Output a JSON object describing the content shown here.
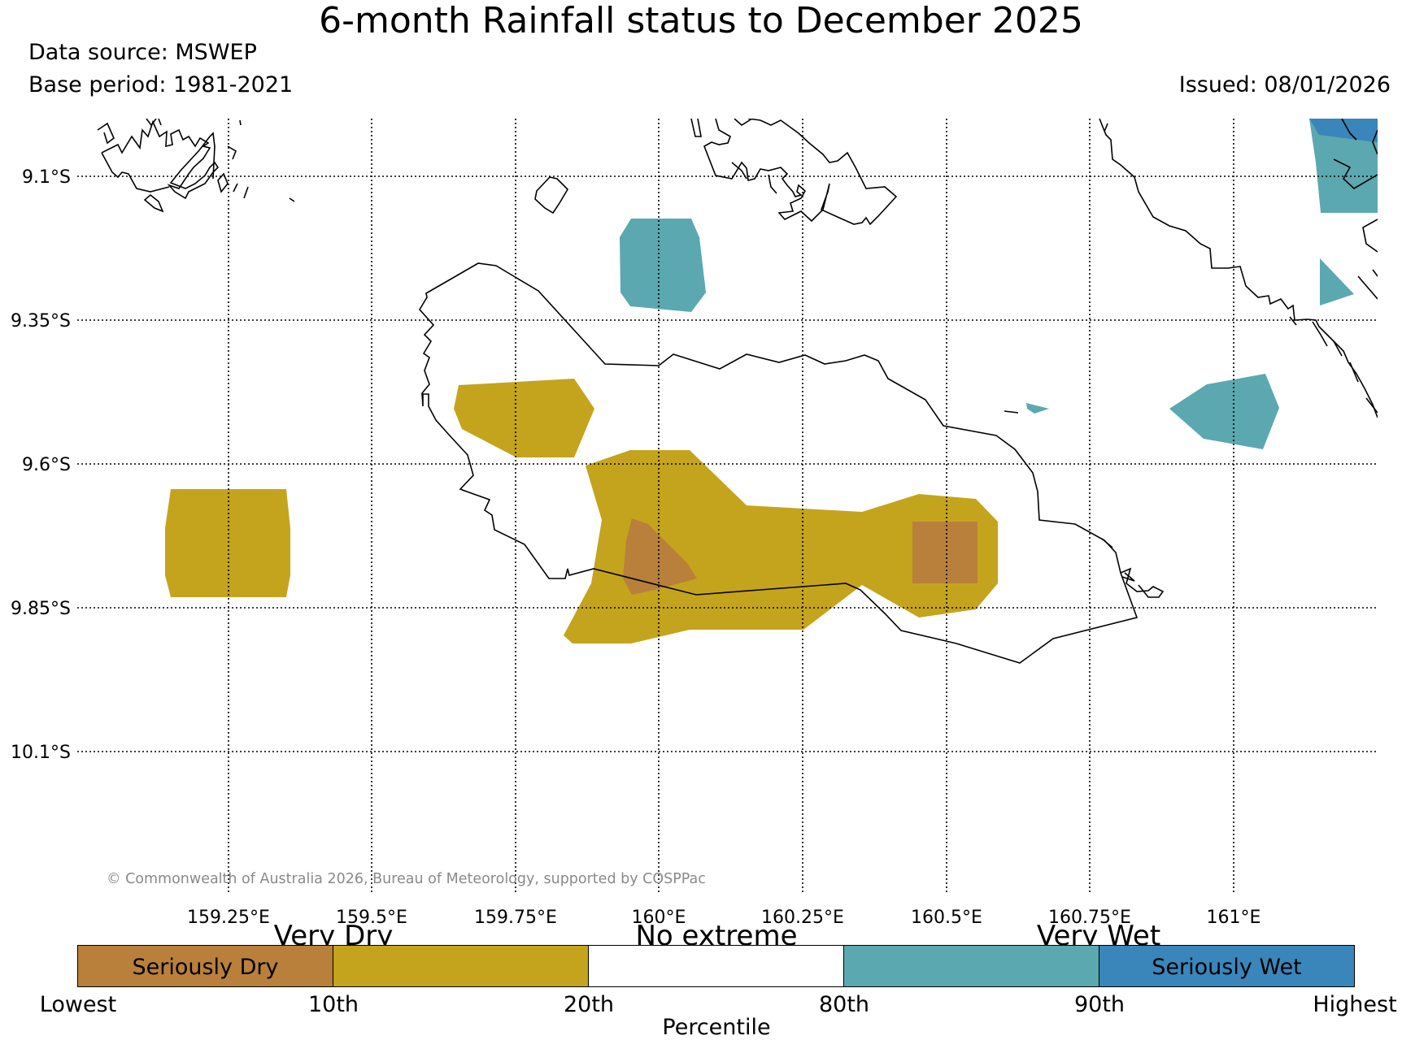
{
  "title": "6-month Rainfall status to December 2025",
  "data_source": "Data source: MSWEP",
  "base_period": "Base period: 1981-2021",
  "issued": "Issued: 08/01/2026",
  "copyright": "© Commonwealth of Australia 2026, Bureau of Meteorology, supported by COSPPac",
  "map": {
    "lat_labels": [
      "9.1°S",
      "9.35°S",
      "9.6°S",
      "9.85°S",
      "10.1°S"
    ],
    "lon_labels": [
      "159.25°E",
      "159.5°E",
      "159.75°E",
      "160°E",
      "160.25°E",
      "160.5°E",
      "160.75°E",
      "161°E"
    ],
    "gridlines": "dotted"
  },
  "legend": {
    "segments": [
      {
        "label": "Seriously Dry",
        "color": "#b8803b"
      },
      {
        "label": "",
        "color": "#c4a41d"
      },
      {
        "label": "",
        "color": "#ffffff"
      },
      {
        "label": "",
        "color": "#5ca8b0"
      },
      {
        "label": "",
        "color": "#3a86ba"
      },
      {
        "label": "Seriously Wet",
        "color": "#3a86ba"
      }
    ],
    "categories": [
      "Very Dry",
      "No extreme",
      "Very Wet"
    ],
    "ticks": [
      "Lowest",
      "10th",
      "20th",
      "80th",
      "90th",
      "Highest"
    ],
    "axis_label": "Percentile"
  }
}
